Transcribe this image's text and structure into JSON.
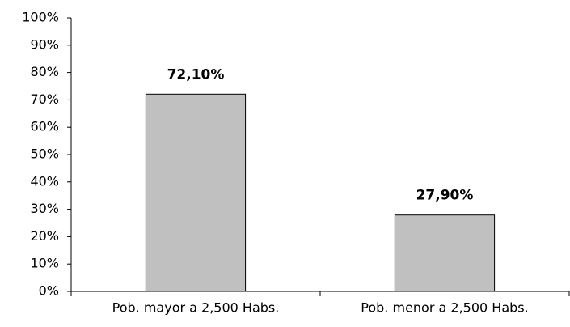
{
  "chart_data": {
    "type": "bar",
    "categories": [
      "Pob. mayor a 2,500 Habs.",
      "Pob. menor a 2,500 Habs."
    ],
    "values": [
      72.1,
      27.9
    ],
    "value_labels": [
      "72,10%",
      "27,90%"
    ],
    "color": "#c0c0c0",
    "ylim": [
      0,
      100
    ],
    "yticks": [
      {
        "value": 0,
        "label": "0%"
      },
      {
        "value": 10,
        "label": "10%"
      },
      {
        "value": 20,
        "label": "20%"
      },
      {
        "value": 30,
        "label": "30%"
      },
      {
        "value": 40,
        "label": "40%"
      },
      {
        "value": 50,
        "label": "50%"
      },
      {
        "value": 60,
        "label": "60%"
      },
      {
        "value": 70,
        "label": "70%"
      },
      {
        "value": 80,
        "label": "80%"
      },
      {
        "value": 90,
        "label": "90%"
      },
      {
        "value": 100,
        "label": "100%"
      }
    ],
    "grid": false
  }
}
